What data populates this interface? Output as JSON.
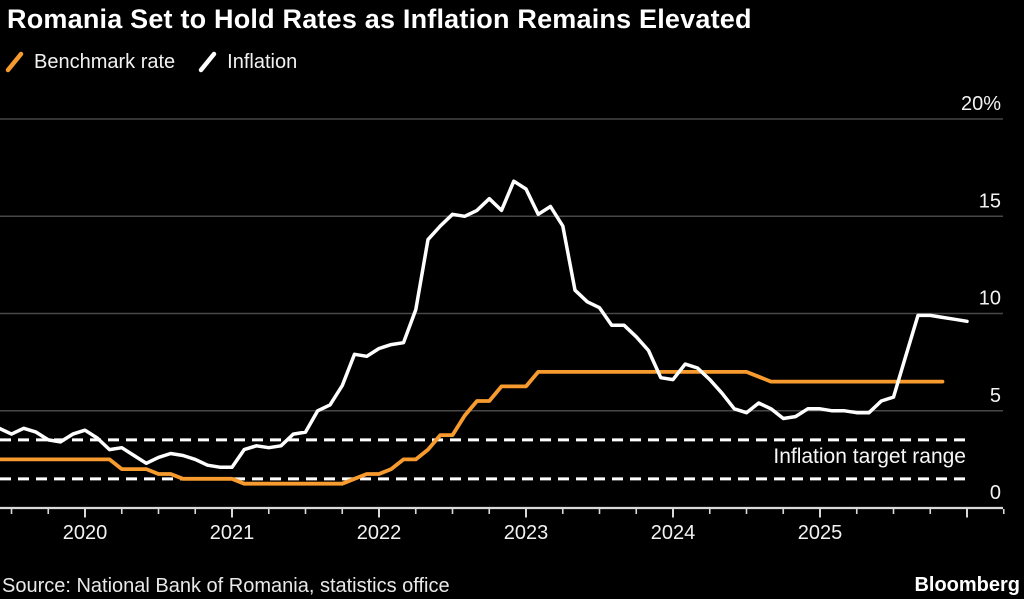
{
  "header": {
    "title": "Romania Set to Hold Rates as Inflation Remains Elevated"
  },
  "legend": {
    "items": [
      {
        "label": "Benchmark rate",
        "color": "#F79B2F"
      },
      {
        "label": "Inflation",
        "color": "#FFFFFF"
      }
    ]
  },
  "footer": {
    "source": "Source: National Bank of Romania, statistics office",
    "brand": "Bloomberg"
  },
  "colors": {
    "background": "#000000",
    "benchmark_rate": "#F79B2F",
    "inflation": "#FFFFFF",
    "gridline": "#474747",
    "axis": "#D9D9D9",
    "label_text": "#F2F2F2"
  },
  "chart_data": {
    "type": "line",
    "title": "Romania Set to Hold Rates as Inflation Remains Elevated",
    "unit": "%",
    "ylim": [
      0,
      20
    ],
    "grid": true,
    "y_axis": {
      "side": "right",
      "tick_values": [
        20,
        15,
        10,
        5,
        0
      ],
      "tick_labels": [
        "20%",
        "15",
        "10",
        "5",
        "0"
      ]
    },
    "x_axis": {
      "start": "2019-05",
      "end": "2026-04",
      "minor_ticks": "quarterly",
      "year_labels": [
        2020,
        2021,
        2022,
        2023,
        2024,
        2025
      ]
    },
    "target_band": {
      "label": "Inflation target range",
      "low": 1.5,
      "high": 3.5,
      "line_style": "dashed",
      "color": "#FFFFFF"
    },
    "series": [
      {
        "name": "Benchmark rate",
        "color": "#F79B2F",
        "points": [
          [
            "2019-05",
            2.5
          ],
          [
            "2019-06",
            2.5
          ],
          [
            "2019-07",
            2.5
          ],
          [
            "2019-08",
            2.5
          ],
          [
            "2019-09",
            2.5
          ],
          [
            "2019-10",
            2.5
          ],
          [
            "2019-11",
            2.5
          ],
          [
            "2019-12",
            2.5
          ],
          [
            "2020-01",
            2.5
          ],
          [
            "2020-02",
            2.5
          ],
          [
            "2020-03",
            2.0
          ],
          [
            "2020-04",
            2.0
          ],
          [
            "2020-05",
            2.0
          ],
          [
            "2020-06",
            1.75
          ],
          [
            "2020-07",
            1.75
          ],
          [
            "2020-08",
            1.5
          ],
          [
            "2020-09",
            1.5
          ],
          [
            "2020-10",
            1.5
          ],
          [
            "2020-11",
            1.5
          ],
          [
            "2020-12",
            1.5
          ],
          [
            "2021-01",
            1.25
          ],
          [
            "2021-02",
            1.25
          ],
          [
            "2021-03",
            1.25
          ],
          [
            "2021-04",
            1.25
          ],
          [
            "2021-05",
            1.25
          ],
          [
            "2021-06",
            1.25
          ],
          [
            "2021-07",
            1.25
          ],
          [
            "2021-08",
            1.25
          ],
          [
            "2021-09",
            1.25
          ],
          [
            "2021-10",
            1.5
          ],
          [
            "2021-11",
            1.75
          ],
          [
            "2021-12",
            1.75
          ],
          [
            "2022-01",
            2.0
          ],
          [
            "2022-02",
            2.5
          ],
          [
            "2022-03",
            2.5
          ],
          [
            "2022-04",
            3.0
          ],
          [
            "2022-05",
            3.75
          ],
          [
            "2022-06",
            3.75
          ],
          [
            "2022-07",
            4.75
          ],
          [
            "2022-08",
            5.5
          ],
          [
            "2022-09",
            5.5
          ],
          [
            "2022-10",
            6.25
          ],
          [
            "2022-11",
            6.25
          ],
          [
            "2022-12",
            6.25
          ],
          [
            "2023-01",
            7.0
          ],
          [
            "2023-02",
            7.0
          ],
          [
            "2023-03",
            7.0
          ],
          [
            "2023-04",
            7.0
          ],
          [
            "2023-05",
            7.0
          ],
          [
            "2023-06",
            7.0
          ],
          [
            "2023-07",
            7.0
          ],
          [
            "2023-08",
            7.0
          ],
          [
            "2023-09",
            7.0
          ],
          [
            "2023-10",
            7.0
          ],
          [
            "2023-11",
            7.0
          ],
          [
            "2023-12",
            7.0
          ],
          [
            "2024-01",
            7.0
          ],
          [
            "2024-02",
            7.0
          ],
          [
            "2024-03",
            7.0
          ],
          [
            "2024-04",
            7.0
          ],
          [
            "2024-05",
            7.0
          ],
          [
            "2024-06",
            7.0
          ],
          [
            "2024-07",
            6.75
          ],
          [
            "2024-08",
            6.5
          ],
          [
            "2024-09",
            6.5
          ],
          [
            "2024-10",
            6.5
          ],
          [
            "2024-11",
            6.5
          ],
          [
            "2024-12",
            6.5
          ],
          [
            "2025-01",
            6.5
          ],
          [
            "2025-02",
            6.5
          ],
          [
            "2025-03",
            6.5
          ],
          [
            "2025-04",
            6.5
          ],
          [
            "2025-05",
            6.5
          ],
          [
            "2025-06",
            6.5
          ],
          [
            "2025-07",
            6.5
          ],
          [
            "2025-08",
            6.5
          ],
          [
            "2025-09",
            6.5
          ],
          [
            "2025-10",
            6.5
          ]
        ]
      },
      {
        "name": "Inflation",
        "color": "#FFFFFF",
        "points": [
          [
            "2019-05",
            4.1
          ],
          [
            "2019-06",
            3.8
          ],
          [
            "2019-07",
            4.1
          ],
          [
            "2019-08",
            3.9
          ],
          [
            "2019-09",
            3.5
          ],
          [
            "2019-10",
            3.4
          ],
          [
            "2019-11",
            3.8
          ],
          [
            "2019-12",
            4.0
          ],
          [
            "2020-01",
            3.6
          ],
          [
            "2020-02",
            3.0
          ],
          [
            "2020-03",
            3.1
          ],
          [
            "2020-04",
            2.7
          ],
          [
            "2020-05",
            2.3
          ],
          [
            "2020-06",
            2.6
          ],
          [
            "2020-07",
            2.8
          ],
          [
            "2020-08",
            2.7
          ],
          [
            "2020-09",
            2.5
          ],
          [
            "2020-10",
            2.2
          ],
          [
            "2020-11",
            2.1
          ],
          [
            "2020-12",
            2.1
          ],
          [
            "2021-01",
            3.0
          ],
          [
            "2021-02",
            3.2
          ],
          [
            "2021-03",
            3.1
          ],
          [
            "2021-04",
            3.2
          ],
          [
            "2021-05",
            3.8
          ],
          [
            "2021-06",
            3.9
          ],
          [
            "2021-07",
            5.0
          ],
          [
            "2021-08",
            5.3
          ],
          [
            "2021-09",
            6.3
          ],
          [
            "2021-10",
            7.9
          ],
          [
            "2021-11",
            7.8
          ],
          [
            "2021-12",
            8.2
          ],
          [
            "2022-01",
            8.4
          ],
          [
            "2022-02",
            8.5
          ],
          [
            "2022-03",
            10.2
          ],
          [
            "2022-04",
            13.8
          ],
          [
            "2022-05",
            14.5
          ],
          [
            "2022-06",
            15.1
          ],
          [
            "2022-07",
            15.0
          ],
          [
            "2022-08",
            15.3
          ],
          [
            "2022-09",
            15.9
          ],
          [
            "2022-10",
            15.3
          ],
          [
            "2022-11",
            16.8
          ],
          [
            "2022-12",
            16.4
          ],
          [
            "2023-01",
            15.1
          ],
          [
            "2023-02",
            15.5
          ],
          [
            "2023-03",
            14.5
          ],
          [
            "2023-04",
            11.2
          ],
          [
            "2023-05",
            10.6
          ],
          [
            "2023-06",
            10.3
          ],
          [
            "2023-07",
            9.4
          ],
          [
            "2023-08",
            9.4
          ],
          [
            "2023-09",
            8.8
          ],
          [
            "2023-10",
            8.1
          ],
          [
            "2023-11",
            6.7
          ],
          [
            "2023-12",
            6.6
          ],
          [
            "2024-01",
            7.4
          ],
          [
            "2024-02",
            7.2
          ],
          [
            "2024-03",
            6.6
          ],
          [
            "2024-04",
            5.9
          ],
          [
            "2024-05",
            5.1
          ],
          [
            "2024-06",
            4.9
          ],
          [
            "2024-07",
            5.4
          ],
          [
            "2024-08",
            5.1
          ],
          [
            "2024-09",
            4.6
          ],
          [
            "2024-10",
            4.7
          ],
          [
            "2024-11",
            5.1
          ],
          [
            "2024-12",
            5.1
          ],
          [
            "2025-01",
            5.0
          ],
          [
            "2025-02",
            5.0
          ],
          [
            "2025-03",
            4.9
          ],
          [
            "2025-04",
            4.9
          ],
          [
            "2025-05",
            5.5
          ],
          [
            "2025-06",
            5.7
          ],
          [
            "2025-07",
            7.8
          ],
          [
            "2025-08",
            9.9
          ],
          [
            "2025-09",
            9.9
          ],
          [
            "2025-10",
            9.8
          ],
          [
            "2025-11",
            9.7
          ],
          [
            "2025-12",
            9.6
          ]
        ]
      }
    ]
  }
}
